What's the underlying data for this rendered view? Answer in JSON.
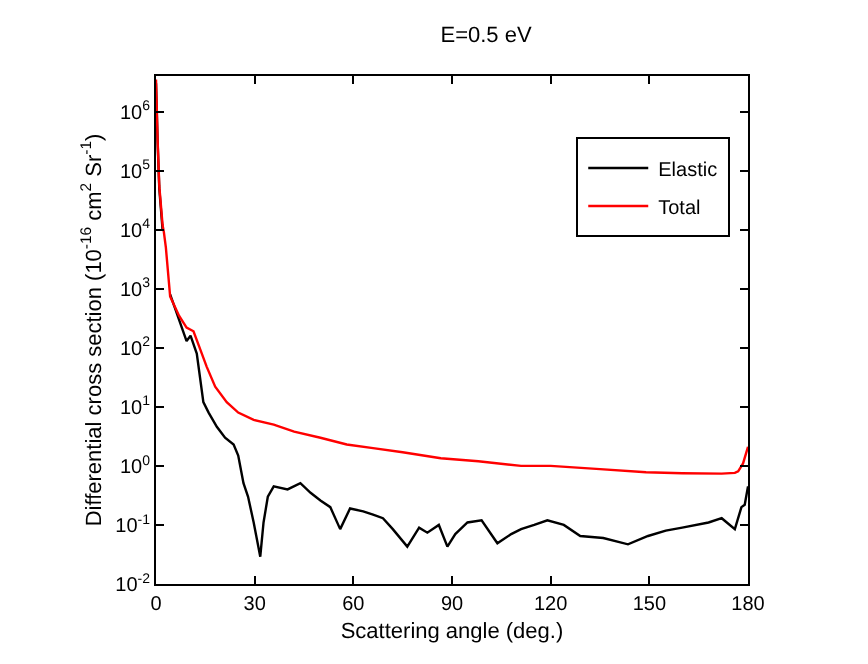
{
  "chart_data": {
    "type": "line",
    "title": "E=0.5 eV",
    "xlabel": "Scattering angle (deg.)",
    "ylabel": "Differential cross section (10$^{-16}$ cm$^{2}$ Sr$^{-1}$)",
    "log": "y",
    "xlim": [
      0,
      180
    ],
    "xticks": [
      0,
      30,
      60,
      90,
      120,
      150,
      180
    ],
    "ylim": [
      0.01,
      4000000
    ],
    "yticks": [
      {
        "value": 0.01,
        "label": "10$^{-2}$"
      },
      {
        "value": 0.1,
        "label": "10$^{-1}$"
      },
      {
        "value": 1,
        "label": "10$^{0}$"
      },
      {
        "value": 10,
        "label": "10$^{1}$"
      },
      {
        "value": 100,
        "label": "10$^{2}$"
      },
      {
        "value": 1000,
        "label": "10$^{3}$"
      },
      {
        "value": 10000,
        "label": "10$^{4}$"
      },
      {
        "value": 100000,
        "label": "10$^{5}$"
      },
      {
        "value": 1000000,
        "label": "10$^{6}$"
      }
    ],
    "legend": "top right",
    "line_style": "solid",
    "marker": "none",
    "series": [
      {
        "name": "Elastic",
        "color": "#000000",
        "x": [
          0,
          0.5,
          1,
          2,
          3,
          4.3,
          7,
          9.3,
          10.5,
          12.4,
          14.4,
          16,
          18.5,
          21,
          23.6,
          25,
          26.6,
          28,
          29.7,
          31.7,
          32.7,
          34,
          35.8,
          40,
          43.9,
          47,
          50,
          53,
          56,
          59,
          63,
          66,
          69,
          72,
          76.4,
          80,
          82.5,
          86,
          88.6,
          91,
          94.7,
          99,
          103.8,
          108,
          111,
          115,
          119,
          124,
          129,
          136,
          143.5,
          149.6,
          155,
          160,
          168,
          172,
          176,
          178,
          179,
          180
        ],
        "values": [
          3000000,
          300000,
          50000,
          10000,
          null,
          800,
          300,
          130,
          160,
          80,
          12,
          8,
          4.6,
          3,
          2.3,
          1.5,
          0.51,
          0.3,
          0.11,
          0.029,
          0.11,
          0.3,
          0.45,
          0.4,
          0.51,
          0.35,
          0.26,
          0.2,
          0.085,
          0.19,
          0.17,
          0.15,
          0.13,
          0.085,
          0.043,
          0.09,
          0.074,
          0.1,
          0.043,
          0.07,
          0.11,
          0.12,
          0.049,
          0.07,
          0.085,
          0.1,
          0.12,
          0.1,
          0.065,
          0.06,
          0.047,
          0.065,
          0.08,
          0.09,
          0.11,
          0.13,
          0.085,
          0.2,
          0.22,
          0.45
        ]
      },
      {
        "name": "Total",
        "color": "#ff0000",
        "x": [
          0,
          0.5,
          1,
          2,
          2.4,
          3,
          4.3,
          7,
          9.3,
          11.4,
          13,
          15.4,
          18,
          21.5,
          25,
          29.7,
          35.8,
          42,
          50,
          58,
          66,
          75,
          86.6,
          98,
          111,
          120,
          135,
          149,
          160,
          172,
          176,
          177,
          178.5,
          180
        ],
        "values": [
          3500000,
          320000,
          55000,
          12000,
          9000,
          5000,
          740,
          350,
          220,
          190,
          110,
          48,
          22,
          12,
          8,
          6,
          5,
          3.8,
          3,
          2.3,
          2,
          1.7,
          1.35,
          1.2,
          1,
          1,
          0.88,
          0.78,
          0.75,
          0.74,
          0.76,
          0.81,
          1.1,
          2.1
        ]
      }
    ]
  }
}
